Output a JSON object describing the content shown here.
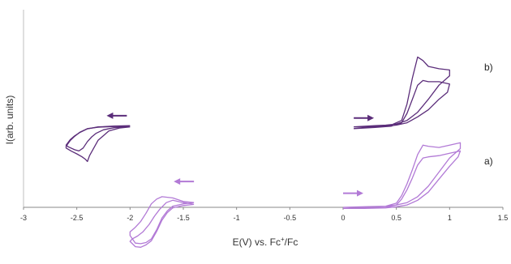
{
  "chart_data": {
    "type": "line",
    "title": "",
    "xlabel_parts": [
      "E(V) vs. Fc",
      "+",
      "/Fc"
    ],
    "ylabel": "I(arb. units)",
    "xlim": [
      -3,
      1.5
    ],
    "xticks": [
      "-3",
      "-2.5",
      "-2",
      "-1.5",
      "-1",
      "-0.5",
      "0",
      "0.5",
      "1",
      "1.5"
    ],
    "grid": false,
    "legend": "none",
    "trace_labels": {
      "b": "b)",
      "a": "a)"
    },
    "colors": {
      "b": "#5b2d7a",
      "a": "#b27ad6"
    },
    "series": [
      {
        "trace": "b",
        "segment": "reduction",
        "scans": [
          {
            "x": [
              -2.0,
              -2.15,
              -2.3,
              -2.4,
              -2.47,
              -2.52,
              -2.56,
              -2.6,
              -2.6,
              -2.55,
              -2.5,
              -2.45,
              -2.42,
              -2.4,
              -2.38,
              -2.3,
              -2.2,
              -2.1,
              -2.0
            ],
            "y": [
              6.9,
              6.88,
              6.82,
              6.7,
              6.4,
              6.05,
              5.7,
              5.2,
              5.05,
              4.78,
              4.55,
              4.3,
              4.1,
              3.9,
              4.4,
              5.7,
              6.5,
              6.75,
              6.85
            ]
          },
          {
            "x": [
              -2.0,
              -2.15,
              -2.3,
              -2.4,
              -2.47,
              -2.52,
              -2.56,
              -2.6,
              -2.58,
              -2.52,
              -2.48,
              -2.44,
              -2.4,
              -2.36,
              -2.32,
              -2.25,
              -2.15,
              -2.05,
              -2.0
            ],
            "y": [
              6.95,
              6.92,
              6.85,
              6.68,
              6.38,
              6.08,
              5.78,
              5.3,
              5.15,
              4.9,
              4.8,
              5.05,
              5.6,
              6.0,
              6.3,
              6.6,
              6.78,
              6.85,
              6.9
            ]
          }
        ]
      },
      {
        "trace": "b",
        "segment": "oxidation",
        "scans": [
          {
            "x": [
              0.1,
              0.3,
              0.45,
              0.55,
              0.6,
              0.65,
              0.7,
              0.75,
              0.8,
              0.9,
              1.0,
              1.0,
              0.9,
              0.8,
              0.7,
              0.6,
              0.5,
              0.4,
              0.3,
              0.2,
              0.1
            ],
            "y": [
              6.85,
              6.9,
              7.0,
              7.4,
              8.8,
              11.0,
              12.8,
              12.5,
              12.0,
              11.8,
              11.7,
              11.2,
              10.4,
              9.2,
              8.1,
              7.4,
              7.1,
              7.0,
              6.95,
              6.9,
              6.85
            ]
          },
          {
            "x": [
              0.1,
              0.3,
              0.45,
              0.55,
              0.6,
              0.65,
              0.7,
              0.75,
              0.8,
              0.9,
              1.0,
              0.98,
              0.9,
              0.8,
              0.7,
              0.6,
              0.5,
              0.4,
              0.3,
              0.2,
              0.1
            ],
            "y": [
              6.7,
              6.8,
              6.9,
              7.2,
              8.0,
              9.2,
              10.4,
              10.8,
              10.7,
              10.7,
              10.5,
              9.8,
              9.2,
              8.3,
              7.7,
              7.2,
              7.0,
              6.9,
              6.85,
              6.8,
              6.7
            ]
          }
        ]
      },
      {
        "trace": "a",
        "segment": "reduction",
        "scans": [
          {
            "x": [
              -1.4,
              -1.5,
              -1.6,
              -1.65,
              -1.7,
              -1.75,
              -1.8,
              -1.85,
              -1.9,
              -1.95,
              -2.0,
              -2.0,
              -1.95,
              -1.9,
              -1.85,
              -1.8,
              -1.75,
              -1.7,
              -1.6,
              -1.5,
              -1.4
            ],
            "y": [
              0.4,
              0.3,
              0.1,
              -0.3,
              -0.9,
              -1.9,
              -2.7,
              -3.0,
              -3.1,
              -3.05,
              -2.4,
              -2.1,
              -1.7,
              -1.2,
              -0.5,
              0.3,
              0.7,
              0.9,
              0.8,
              0.5,
              0.4
            ]
          },
          {
            "x": [
              -1.4,
              -1.5,
              -1.6,
              -1.65,
              -1.7,
              -1.75,
              -1.8,
              -1.85,
              -1.9,
              -1.95,
              -2.0,
              -1.98,
              -1.93,
              -1.88,
              -1.82,
              -1.77,
              -1.72,
              -1.66,
              -1.6,
              -1.5,
              -1.4
            ],
            "y": [
              0.25,
              0.15,
              -0.05,
              -0.45,
              -1.1,
              -2.05,
              -2.85,
              -3.2,
              -3.4,
              -3.35,
              -2.9,
              -2.7,
              -2.45,
              -2.1,
              -1.45,
              -0.75,
              -0.15,
              0.4,
              0.6,
              0.4,
              0.25
            ]
          }
        ]
      },
      {
        "trace": "a",
        "segment": "oxidation",
        "scans": [
          {
            "x": [
              0.0,
              0.2,
              0.4,
              0.5,
              0.55,
              0.6,
              0.65,
              0.7,
              0.75,
              0.8,
              0.9,
              1.0,
              1.1,
              1.1,
              1.0,
              0.9,
              0.8,
              0.7,
              0.6,
              0.5,
              0.4,
              0.2,
              0.0
            ],
            "y": [
              0.0,
              0.05,
              0.1,
              0.35,
              1.0,
              2.0,
              3.2,
              4.5,
              5.3,
              5.2,
              5.1,
              5.3,
              5.5,
              5.0,
              4.2,
              3.0,
              1.8,
              0.9,
              0.4,
              0.2,
              0.1,
              0.05,
              0.0
            ]
          },
          {
            "x": [
              0.0,
              0.2,
              0.4,
              0.5,
              0.55,
              0.6,
              0.65,
              0.7,
              0.75,
              0.8,
              0.9,
              1.0,
              1.1,
              1.08,
              1.0,
              0.9,
              0.8,
              0.7,
              0.6,
              0.5,
              0.4,
              0.2,
              0.0
            ],
            "y": [
              -0.1,
              -0.05,
              0.0,
              0.2,
              0.7,
              1.5,
              2.5,
              3.6,
              4.2,
              4.3,
              4.4,
              4.6,
              4.8,
              4.3,
              3.5,
              2.4,
              1.3,
              0.6,
              0.2,
              0.05,
              -0.05,
              -0.1,
              -0.1
            ]
          }
        ]
      }
    ],
    "arrows": [
      {
        "trace": "b",
        "direction": "left",
        "x_from": -2.03,
        "x_to": -2.22,
        "y": 7.8
      },
      {
        "trace": "b",
        "direction": "right",
        "x_from": 0.1,
        "x_to": 0.29,
        "y": 7.6
      },
      {
        "trace": "a",
        "direction": "left",
        "x_from": -1.4,
        "x_to": -1.59,
        "y": 2.2
      },
      {
        "trace": "a",
        "direction": "right",
        "x_from": 0.0,
        "x_to": 0.19,
        "y": 1.2
      }
    ]
  }
}
